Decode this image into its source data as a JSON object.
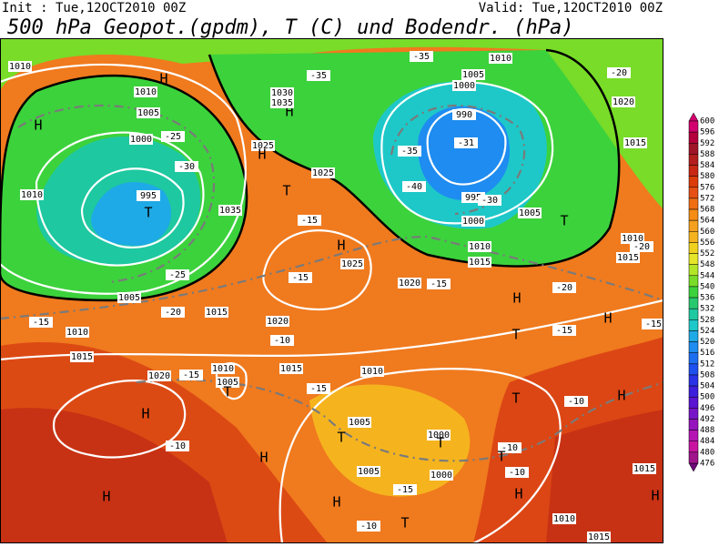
{
  "header": {
    "init": "Init : Tue,12OCT2010 00Z",
    "valid": "Valid: Tue,12OCT2010 00Z",
    "title": "500 hPa Geopot.(gpdm), T (C) und Bodendr. (hPa)"
  },
  "map_labels": [
    "1010",
    "H",
    "1010",
    "1005",
    "H",
    "1000",
    "-25",
    "-30",
    "995",
    "T",
    "1010",
    "1005",
    "-25",
    "-20",
    "1015",
    "-15",
    "1010",
    "1015",
    "1020",
    "-15",
    "1010",
    "1005",
    "T",
    "H",
    "-10",
    "H",
    "H",
    "1015",
    "1020",
    "-10",
    "H",
    "1025",
    "-15",
    "1020",
    "-15",
    "H",
    "1030",
    "1035",
    "1025",
    "T",
    "-15",
    "1035",
    "1025",
    "H",
    "-35",
    "-35",
    "1010",
    "1005",
    "1000",
    "990",
    "-31",
    "-35",
    "-40",
    "995",
    "-30",
    "1000",
    "1005",
    "T",
    "1010",
    "1015",
    "-20",
    "1020",
    "1015",
    "1010",
    "-20",
    "1015",
    "H",
    "-20",
    "T",
    "-15",
    "H",
    "-15",
    "T",
    "-10",
    "H",
    "1010",
    "-15",
    "1005",
    "T",
    "1000",
    "T",
    "-10",
    "T",
    "-10",
    "1005",
    "1000",
    "H",
    "-15",
    "H",
    "T",
    "-10",
    "1010",
    "1015",
    "1015",
    "H"
  ],
  "colorbar": {
    "levels": [
      600,
      596,
      592,
      588,
      584,
      580,
      576,
      572,
      568,
      564,
      560,
      556,
      552,
      548,
      544,
      540,
      536,
      532,
      528,
      524,
      520,
      516,
      512,
      508,
      504,
      500,
      496,
      492,
      488,
      484,
      480,
      476
    ],
    "colors": [
      "#d2006e",
      "#b4003c",
      "#a01428",
      "#b41e1e",
      "#c82814",
      "#dc3c0a",
      "#e65014",
      "#f06e14",
      "#f58c14",
      "#f5a01e",
      "#f5b41e",
      "#f0d21e",
      "#e6e628",
      "#b4e628",
      "#78dc28",
      "#3cd23c",
      "#28c86e",
      "#1ec8a0",
      "#1ec8c8",
      "#1eaae6",
      "#1e8cf0",
      "#1e6ef0",
      "#1e50f0",
      "#2832e6",
      "#3c1edc",
      "#5a14d2",
      "#7814c8",
      "#9614be",
      "#b414b4",
      "#c814a0",
      "#a0148c",
      "#6e0a78"
    ]
  }
}
